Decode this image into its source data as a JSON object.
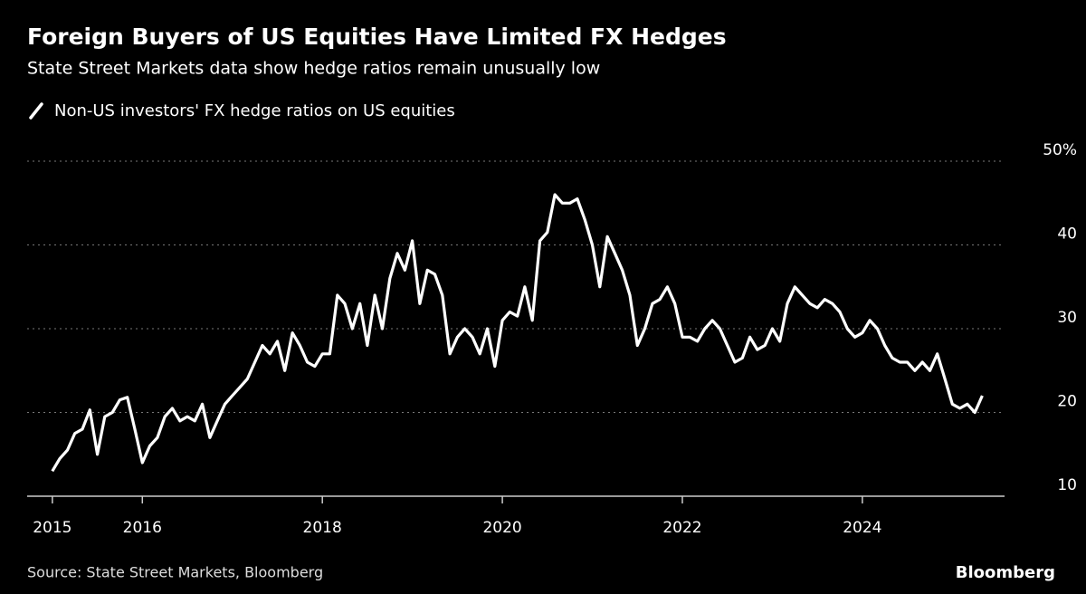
{
  "chart_data": {
    "type": "line",
    "title": "Foreign Buyers of US Equities Have Limited FX Hedges",
    "subtitle": "State Street Markets data show hedge ratios remain unusually low",
    "source": "Source: State Street Markets, Bloomberg",
    "brand": "Bloomberg",
    "x": [
      2015,
      2015.083,
      2015.167,
      2015.25,
      2015.333,
      2015.417,
      2015.5,
      2015.583,
      2015.667,
      2015.75,
      2015.833,
      2015.917,
      2016,
      2016.083,
      2016.167,
      2016.25,
      2016.333,
      2016.417,
      2016.5,
      2016.583,
      2016.667,
      2016.75,
      2016.833,
      2016.917,
      2017,
      2017.083,
      2017.167,
      2017.25,
      2017.333,
      2017.417,
      2017.5,
      2017.583,
      2017.667,
      2017.75,
      2017.833,
      2017.917,
      2018,
      2018.083,
      2018.167,
      2018.25,
      2018.333,
      2018.417,
      2018.5,
      2018.583,
      2018.667,
      2018.75,
      2018.833,
      2018.917,
      2019,
      2019.083,
      2019.167,
      2019.25,
      2019.333,
      2019.417,
      2019.5,
      2019.583,
      2019.667,
      2019.75,
      2019.833,
      2019.917,
      2020,
      2020.083,
      2020.167,
      2020.25,
      2020.333,
      2020.417,
      2020.5,
      2020.583,
      2020.667,
      2020.75,
      2020.833,
      2020.917,
      2021,
      2021.083,
      2021.167,
      2021.25,
      2021.333,
      2021.417,
      2021.5,
      2021.583,
      2021.667,
      2021.75,
      2021.833,
      2021.917,
      2022,
      2022.083,
      2022.167,
      2022.25,
      2022.333,
      2022.417,
      2022.5,
      2022.583,
      2022.667,
      2022.75,
      2022.833,
      2022.917,
      2023,
      2023.083,
      2023.167,
      2023.25,
      2023.333,
      2023.417,
      2023.5,
      2023.583,
      2023.667,
      2023.75,
      2023.833,
      2023.917,
      2024,
      2024.083,
      2024.167,
      2024.25,
      2024.333,
      2024.417,
      2024.5,
      2024.583,
      2024.667,
      2024.75,
      2024.833,
      2024.917,
      2025,
      2025.083,
      2025.167,
      2025.25,
      2025.333
    ],
    "series": [
      {
        "name": "Non-US investors' FX hedge ratios on US equities",
        "color": "#ffffff",
        "values": [
          13,
          14.5,
          15.5,
          17.5,
          18,
          20.3,
          15,
          19.5,
          20,
          21.5,
          21.8,
          18,
          14,
          16,
          17,
          19.5,
          20.5,
          19,
          19.5,
          19,
          21,
          17,
          19,
          21,
          22,
          23,
          24,
          26,
          28,
          27,
          28.5,
          25,
          29.5,
          28,
          26,
          25.5,
          27,
          27,
          34,
          33,
          30,
          33,
          28,
          34,
          30,
          36,
          39,
          37,
          40.5,
          33,
          37,
          36.5,
          34,
          27,
          29,
          30,
          29,
          27,
          30,
          25.5,
          31,
          32,
          31.5,
          35,
          31,
          40.5,
          41.5,
          46,
          45,
          45,
          45.5,
          43,
          40,
          35,
          41,
          39,
          37,
          34,
          28,
          30,
          33,
          33.5,
          35,
          33,
          29,
          29,
          28.5,
          30,
          31,
          30,
          28,
          26,
          26.5,
          29,
          27.5,
          28,
          30,
          28.5,
          33,
          35,
          34,
          33,
          32.5,
          33.5,
          33,
          32,
          30,
          29,
          29.5,
          31,
          30,
          28,
          26.5,
          26,
          26,
          25,
          26,
          25,
          27,
          24,
          21,
          20.5,
          21,
          20,
          22
        ]
      }
    ],
    "xlim": [
      2014.72,
      2025.58
    ],
    "ylim": [
      10,
      50
    ],
    "xticks": [
      2015,
      2016,
      2018,
      2020,
      2022,
      2024
    ],
    "yticks": [
      10,
      20,
      30,
      40,
      {
        "value": 50,
        "label": "50%"
      }
    ],
    "grid": true
  }
}
